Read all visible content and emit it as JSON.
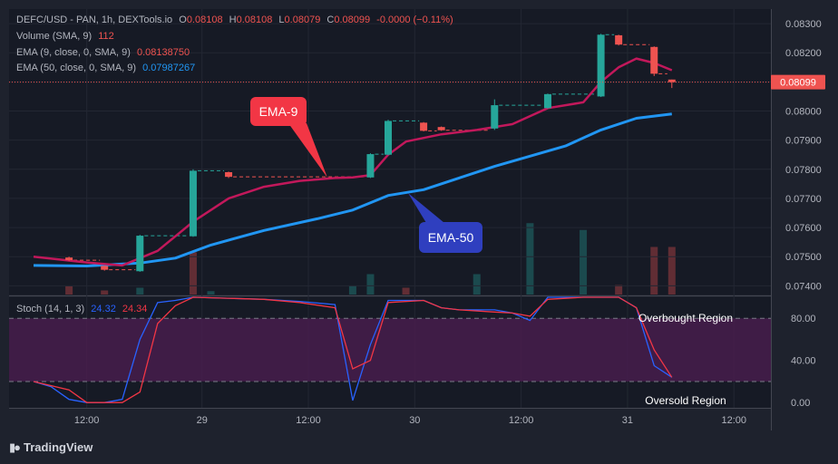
{
  "header": {
    "symbol_line": "DEFC/USD - PAN, 1h, DEXTools.io",
    "open_label": "O",
    "open": "0.08108",
    "high_label": "H",
    "high": "0.08108",
    "low_label": "L",
    "low": "0.08079",
    "close_label": "C",
    "close": "0.08099",
    "change": "-0.0000 (−0.11%)"
  },
  "indicators": {
    "volume": {
      "label": "Volume (SMA, 9)",
      "value": "112",
      "color": "#ef5350"
    },
    "ema9": {
      "label": "EMA (9, close, 0, SMA, 9)",
      "value": "0.08138750",
      "color": "#ef5350"
    },
    "ema50": {
      "label": "EMA (50, close, 0, SMA, 9)",
      "value": "0.07987267",
      "color": "#2196f3"
    }
  },
  "stoch_legend": {
    "label": "Stoch (14, 1, 3)",
    "k": "24.32",
    "d": "24.34"
  },
  "annotations": {
    "ema9_callout": "EMA-9",
    "ema50_callout": "EMA-50",
    "overbought": "Overbought Region",
    "oversold": "Oversold Region"
  },
  "branding": {
    "name": "TradingView"
  },
  "colors": {
    "background": "#1e222d",
    "up": "#26a69a",
    "down": "#ef5350",
    "ema9_line": "#c2185b",
    "ema50_line": "#2196f3",
    "stoch_k": "#2962ff",
    "stoch_d": "#f23645",
    "stoch_band": "#4a1d4f"
  },
  "chart_data": [
    {
      "type": "candlestick",
      "title": "",
      "price_axis_ticks": [
        "0.08300",
        "0.08200",
        "0.08100",
        "0.08000",
        "0.07900",
        "0.07800",
        "0.07700",
        "0.07600",
        "0.07500",
        "0.07400"
      ],
      "ylim": [
        0.0737,
        0.0835
      ],
      "time_axis_ticks": [
        "12:00",
        "29",
        "12:00",
        "30",
        "12:00",
        "31",
        "12:00"
      ],
      "current_price": "0.08099",
      "candles": [
        {
          "t": 2,
          "open": 0.07497,
          "high": 0.075,
          "low": 0.07485,
          "close": 0.07488
        },
        {
          "t": 4,
          "open": 0.07468,
          "high": 0.0747,
          "low": 0.07452,
          "close": 0.07455
        },
        {
          "t": 6,
          "open": 0.0745,
          "high": 0.07575,
          "low": 0.07448,
          "close": 0.07572
        },
        {
          "t": 9,
          "open": 0.0757,
          "high": 0.078,
          "low": 0.07568,
          "close": 0.07795
        },
        {
          "t": 11,
          "open": 0.0779,
          "high": 0.07792,
          "low": 0.0777,
          "close": 0.07774
        },
        {
          "t": 19,
          "open": 0.07772,
          "high": 0.07855,
          "low": 0.0777,
          "close": 0.07852
        },
        {
          "t": 20,
          "open": 0.0785,
          "high": 0.0797,
          "low": 0.07848,
          "close": 0.07966
        },
        {
          "t": 22,
          "open": 0.0796,
          "high": 0.07962,
          "low": 0.0793,
          "close": 0.07932
        },
        {
          "t": 23,
          "open": 0.07945,
          "high": 0.07947,
          "low": 0.07932,
          "close": 0.07934
        },
        {
          "t": 26,
          "open": 0.0794,
          "high": 0.0804,
          "low": 0.07935,
          "close": 0.0802
        },
        {
          "t": 29,
          "open": 0.0801,
          "high": 0.0806,
          "low": 0.08008,
          "close": 0.08058
        },
        {
          "t": 32,
          "open": 0.0805,
          "high": 0.08265,
          "low": 0.08048,
          "close": 0.08262
        },
        {
          "t": 33,
          "open": 0.0826,
          "high": 0.08262,
          "low": 0.08225,
          "close": 0.08228
        },
        {
          "t": 35,
          "open": 0.0822,
          "high": 0.08222,
          "low": 0.0812,
          "close": 0.08128
        },
        {
          "t": 36,
          "open": 0.08108,
          "high": 0.08108,
          "low": 0.08079,
          "close": 0.08099
        }
      ],
      "ema9": [
        [
          0,
          0.075
        ],
        [
          3,
          0.0748
        ],
        [
          5,
          0.0747
        ],
        [
          7,
          0.0752
        ],
        [
          9,
          0.0762
        ],
        [
          11,
          0.077
        ],
        [
          13,
          0.0774
        ],
        [
          15,
          0.0776
        ],
        [
          17,
          0.0777
        ],
        [
          18,
          0.07772
        ],
        [
          19,
          0.0778
        ],
        [
          20,
          0.0785
        ],
        [
          21,
          0.07895
        ],
        [
          23,
          0.0792
        ],
        [
          25,
          0.07935
        ],
        [
          27,
          0.07955
        ],
        [
          29,
          0.0801
        ],
        [
          31,
          0.0803
        ],
        [
          32,
          0.081
        ],
        [
          33,
          0.0815
        ],
        [
          34,
          0.0818
        ],
        [
          35,
          0.08165
        ],
        [
          36,
          0.0814
        ]
      ],
      "ema50": [
        [
          0,
          0.0747
        ],
        [
          3,
          0.07468
        ],
        [
          6,
          0.07478
        ],
        [
          8,
          0.07495
        ],
        [
          10,
          0.0754
        ],
        [
          13,
          0.0759
        ],
        [
          16,
          0.0763
        ],
        [
          18,
          0.0766
        ],
        [
          20,
          0.0771
        ],
        [
          22,
          0.0773
        ],
        [
          24,
          0.0777
        ],
        [
          26,
          0.0781
        ],
        [
          28,
          0.07845
        ],
        [
          30,
          0.0788
        ],
        [
          32,
          0.07935
        ],
        [
          34,
          0.07975
        ],
        [
          36,
          0.0799
        ]
      ],
      "volume": [
        {
          "t": 2,
          "v": 12,
          "dir": "down"
        },
        {
          "t": 4,
          "v": 6,
          "dir": "down"
        },
        {
          "t": 6,
          "v": 10,
          "dir": "up"
        },
        {
          "t": 9,
          "v": 62,
          "dir": "down"
        },
        {
          "t": 10,
          "v": 5,
          "dir": "up"
        },
        {
          "t": 18,
          "v": 13,
          "dir": "up"
        },
        {
          "t": 19,
          "v": 30,
          "dir": "up"
        },
        {
          "t": 21,
          "v": 10,
          "dir": "down"
        },
        {
          "t": 25,
          "v": 30,
          "dir": "up"
        },
        {
          "t": 28,
          "v": 105,
          "dir": "up"
        },
        {
          "t": 31,
          "v": 95,
          "dir": "up"
        },
        {
          "t": 33,
          "v": 14,
          "dir": "down"
        },
        {
          "t": 35,
          "v": 70,
          "dir": "down"
        },
        {
          "t": 36,
          "v": 70,
          "dir": "down"
        }
      ]
    },
    {
      "type": "line",
      "title": "",
      "ylim": [
        -5,
        100
      ],
      "y_ticks": [
        "80.00",
        "40.00",
        "0.00"
      ],
      "bands": [
        20,
        80
      ],
      "series": [
        {
          "name": "%K",
          "points": [
            [
              0,
              20
            ],
            [
              1,
              15
            ],
            [
              2,
              3
            ],
            [
              3,
              0
            ],
            [
              4,
              0
            ],
            [
              5,
              3
            ],
            [
              6,
              60
            ],
            [
              7,
              95
            ],
            [
              8,
              97
            ],
            [
              9,
              100
            ],
            [
              13,
              98
            ],
            [
              15,
              96
            ],
            [
              17,
              93
            ],
            [
              18,
              2
            ],
            [
              19,
              55
            ],
            [
              20,
              97
            ],
            [
              22,
              97
            ],
            [
              23,
              90
            ],
            [
              24,
              88
            ],
            [
              26,
              88
            ],
            [
              27,
              85
            ],
            [
              28,
              78
            ],
            [
              29,
              100
            ],
            [
              31,
              100
            ],
            [
              33,
              100
            ],
            [
              34,
              90
            ],
            [
              35,
              35
            ],
            [
              36,
              24
            ]
          ]
        },
        {
          "name": "%D",
          "points": [
            [
              0,
              20
            ],
            [
              2,
              12
            ],
            [
              3,
              0
            ],
            [
              5,
              0
            ],
            [
              6,
              10
            ],
            [
              7,
              75
            ],
            [
              8,
              92
            ],
            [
              9,
              100
            ],
            [
              13,
              98
            ],
            [
              15,
              95
            ],
            [
              17,
              90
            ],
            [
              18,
              32
            ],
            [
              19,
              40
            ],
            [
              20,
              95
            ],
            [
              22,
              97
            ],
            [
              23,
              90
            ],
            [
              24,
              88
            ],
            [
              26,
              86
            ],
            [
              27,
              85
            ],
            [
              28,
              82
            ],
            [
              29,
              98
            ],
            [
              31,
              100
            ],
            [
              33,
              100
            ],
            [
              34,
              90
            ],
            [
              35,
              50
            ],
            [
              36,
              24
            ]
          ]
        }
      ]
    }
  ]
}
